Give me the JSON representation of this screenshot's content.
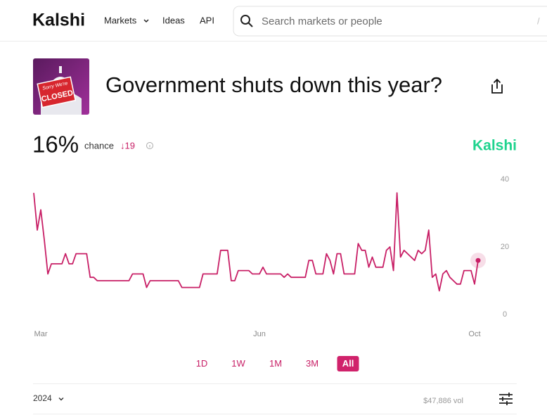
{
  "header": {
    "logo": "Kalshi",
    "nav": [
      "Markets",
      "Ideas",
      "API"
    ],
    "search_placeholder": "Search markets or people",
    "search_shortcut": "/"
  },
  "market": {
    "image_sign": [
      "Sorry We're",
      "CLOSED"
    ],
    "title": "Government shuts down this year?",
    "chance": "16%",
    "chance_label": "chance",
    "change": "↓19",
    "brand_mark": "Kalshi"
  },
  "chart_data": {
    "type": "line",
    "color": "#c81f66",
    "grid": false,
    "categories": [
      null,
      null,
      "Mar",
      null,
      null,
      null,
      null,
      null,
      null,
      null,
      null,
      null,
      null,
      null,
      null,
      null,
      null,
      null,
      null,
      null,
      null,
      null,
      null,
      null,
      null,
      null,
      null,
      null,
      null,
      null,
      null,
      null,
      null,
      null,
      null,
      null,
      null,
      null,
      null,
      null,
      null,
      null,
      null,
      null,
      null,
      null,
      null,
      null,
      null,
      null,
      null,
      null,
      null,
      null,
      null,
      null,
      null,
      null,
      null,
      null,
      null,
      null,
      null,
      null,
      "Jun",
      null,
      null,
      null,
      null,
      null,
      null,
      null,
      null,
      null,
      null,
      null,
      null,
      null,
      null,
      null,
      null,
      null,
      null,
      null,
      null,
      null,
      null,
      null,
      null,
      null,
      null,
      null,
      null,
      null,
      null,
      null,
      null,
      null,
      null,
      null,
      null,
      null,
      null,
      null,
      null,
      null,
      null,
      null,
      null,
      null,
      null,
      null,
      null,
      null,
      null,
      null,
      null,
      null,
      null,
      null,
      null,
      null,
      null,
      null,
      null,
      "Oct",
      null
    ],
    "values": [
      36,
      25,
      31,
      22,
      12,
      15,
      15,
      15,
      15,
      18,
      15,
      15,
      18,
      18,
      18,
      18,
      11,
      11,
      10,
      10,
      10,
      10,
      10,
      10,
      10,
      10,
      10,
      10,
      12,
      12,
      12,
      12,
      8,
      10,
      10,
      10,
      10,
      10,
      10,
      10,
      10,
      10,
      8,
      8,
      8,
      8,
      8,
      8,
      12,
      12,
      12,
      12,
      12,
      19,
      19,
      19,
      10,
      10,
      13,
      13,
      13,
      13,
      12,
      12,
      12,
      14,
      12,
      12,
      12,
      12,
      12,
      11,
      12,
      11,
      11,
      11,
      11,
      11,
      16,
      16,
      12,
      12,
      12,
      18,
      16,
      12,
      18,
      18,
      12,
      12,
      12,
      12,
      21,
      19,
      19,
      14,
      17,
      14,
      14,
      14,
      19,
      20,
      13,
      36,
      17,
      19,
      18,
      17,
      16,
      19,
      18,
      19,
      25,
      11,
      12,
      7,
      12,
      13,
      11,
      10,
      9,
      9,
      13,
      13,
      13,
      9,
      16
    ],
    "ylim": [
      0,
      40
    ],
    "yticks": [
      0,
      20,
      40
    ]
  },
  "range_buttons": [
    "1D",
    "1W",
    "1M",
    "3M",
    "All"
  ],
  "selected_range": "All",
  "footer": {
    "year": "2024",
    "volume": "$47,886 vol"
  }
}
